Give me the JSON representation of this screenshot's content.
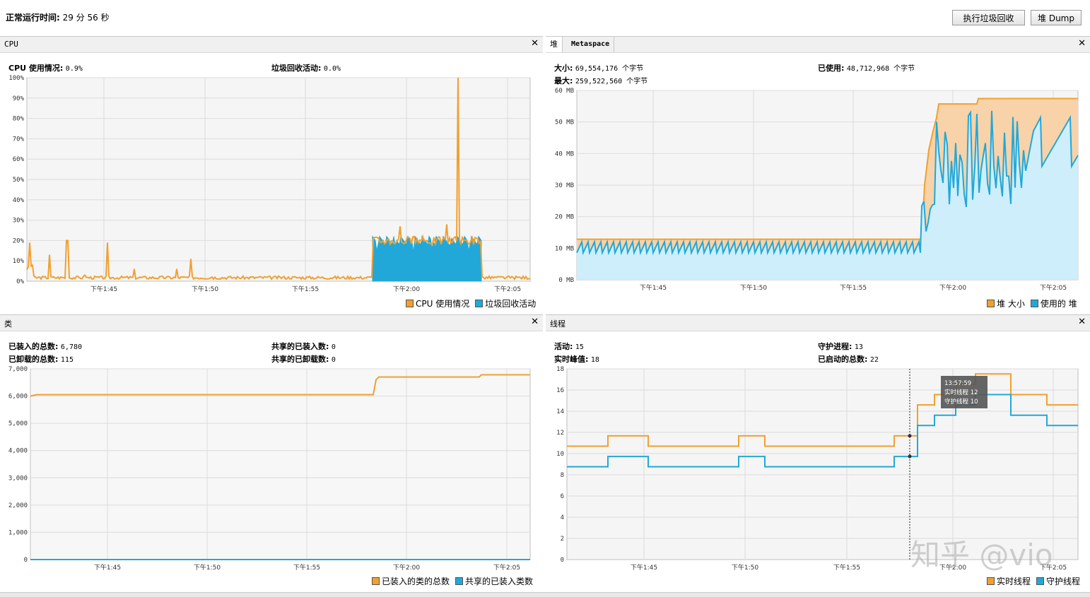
{
  "header": {
    "uptime_label": "正常运行时间:",
    "uptime_value": "29 分 56 秒",
    "gc_button": "执行垃圾回收",
    "dump_button": "堆 Dump"
  },
  "cpu_panel": {
    "title": "CPU",
    "cpu_label": "CPU 使用情况:",
    "cpu_value": "0.9%",
    "gc_label": "垃圾回收活动:",
    "gc_value": "0.0%",
    "legend": [
      "CPU 使用情况",
      "垃圾回收活动"
    ]
  },
  "heap_panel": {
    "tab_heap": "堆",
    "tab_meta": "Metaspace",
    "size_label": "大小:",
    "size_value": "69,554,176 个字节",
    "used_label": "已使用:",
    "used_value": "48,712,968 个字节",
    "max_label": "最大:",
    "max_value": "259,522,560 个字节",
    "legend": [
      "堆 大小",
      "使用的 堆"
    ]
  },
  "class_panel": {
    "title": "类",
    "loaded_label": "已装入的总数:",
    "loaded_value": "6,780",
    "unloaded_label": "已卸载的总数:",
    "unloaded_value": "115",
    "shared_loaded_label": "共享的已装入数:",
    "shared_loaded_value": "0",
    "shared_unloaded_label": "共享的已卸载数:",
    "shared_unloaded_value": "0",
    "legend": [
      "已装入的类的总数",
      "共享的已装入类数"
    ]
  },
  "thread_panel": {
    "title": "线程",
    "live_label": "活动:",
    "live_value": "15",
    "peak_label": "实时峰值:",
    "peak_value": "18",
    "daemon_label": "守护进程:",
    "daemon_value": "13",
    "started_label": "已启动的总数:",
    "started_value": "22",
    "tooltip": {
      "time": "13:57:59",
      "live": "实时线程  12",
      "daemon": "守护线程  10"
    },
    "legend": [
      "实时线程",
      "守护线程"
    ]
  },
  "x_ticks": [
    "下午1:45",
    "下午1:50",
    "下午1:55",
    "下午2:00",
    "下午2:05"
  ],
  "colors": {
    "orange": "#f0a030",
    "blue": "#22a8d8"
  },
  "watermark": "知乎 @vio",
  "chart_data": [
    {
      "type": "line",
      "name": "cpu",
      "y_ticks": [
        "0%",
        "10%",
        "20%",
        "30%",
        "40%",
        "50%",
        "60%",
        "70%",
        "80%",
        "90%",
        "100%"
      ],
      "ylim": [
        0,
        100
      ],
      "note_series": [
        "CPU 使用情况",
        "垃圾回收活动"
      ],
      "cpu_peak": 100,
      "gc_burst": 20
    },
    {
      "type": "area",
      "name": "heap",
      "y_ticks": [
        "0 MB",
        "10 MB",
        "20 MB",
        "30 MB",
        "40 MB",
        "50 MB",
        "60 MB"
      ],
      "ylim": [
        0,
        70
      ]
    },
    {
      "type": "line",
      "name": "classes",
      "y_ticks": [
        "0",
        "1,000",
        "2,000",
        "3,000",
        "4,000",
        "5,000",
        "6,000",
        "7,000"
      ],
      "ylim": [
        0,
        7000
      ]
    },
    {
      "type": "line",
      "name": "threads",
      "y_ticks": [
        "0",
        "2",
        "4",
        "6",
        "8",
        "10",
        "12",
        "14",
        "16",
        "18"
      ],
      "ylim": [
        0,
        18.5
      ]
    }
  ]
}
